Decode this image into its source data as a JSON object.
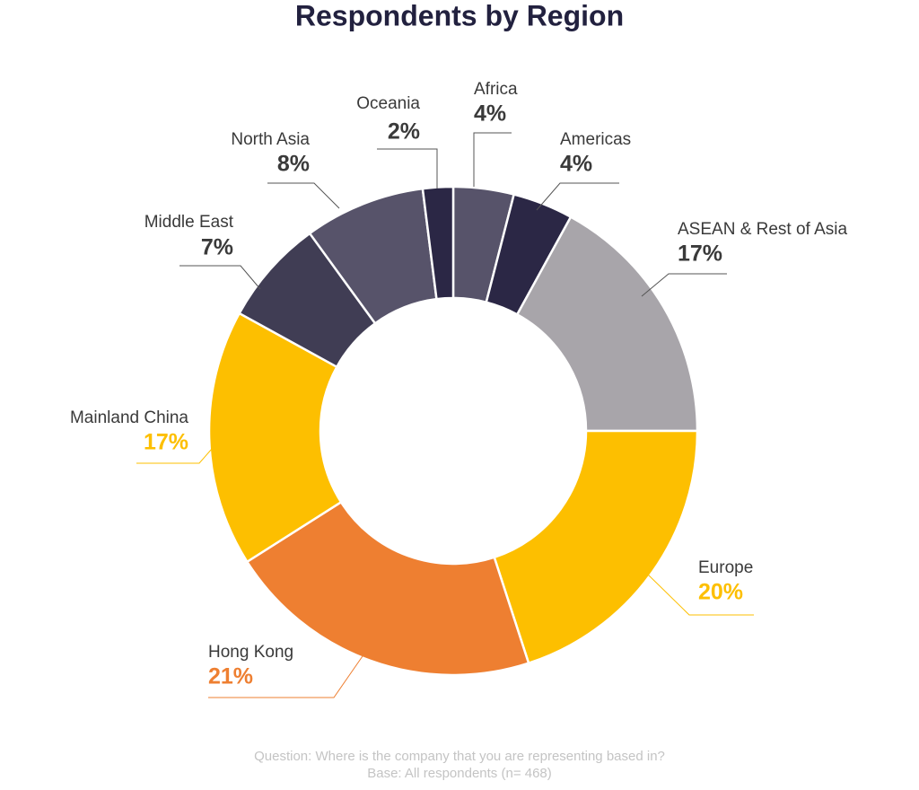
{
  "chart_data": {
    "type": "donut",
    "title": "Respondents by Region",
    "categories": [
      "Africa",
      "Americas",
      "ASEAN & Rest of Asia",
      "Europe",
      "Hong Kong",
      "Mainland China",
      "Middle East",
      "North Asia",
      "Oceania"
    ],
    "values": [
      4,
      4,
      17,
      20,
      21,
      17,
      7,
      8,
      2
    ],
    "value_labels": [
      "4%",
      "4%",
      "17%",
      "20%",
      "21%",
      "17%",
      "7%",
      "8%",
      "2%"
    ],
    "colors": [
      "#57536a",
      "#2b2745",
      "#a8a5aa",
      "#fdbf00",
      "#ee7f31",
      "#fdbf00",
      "#403d54",
      "#57536a",
      "#2b2745"
    ],
    "footnote": [
      "Question: Where is the company that you are representing based in?",
      "Base: All respondents (n= 468)"
    ]
  }
}
